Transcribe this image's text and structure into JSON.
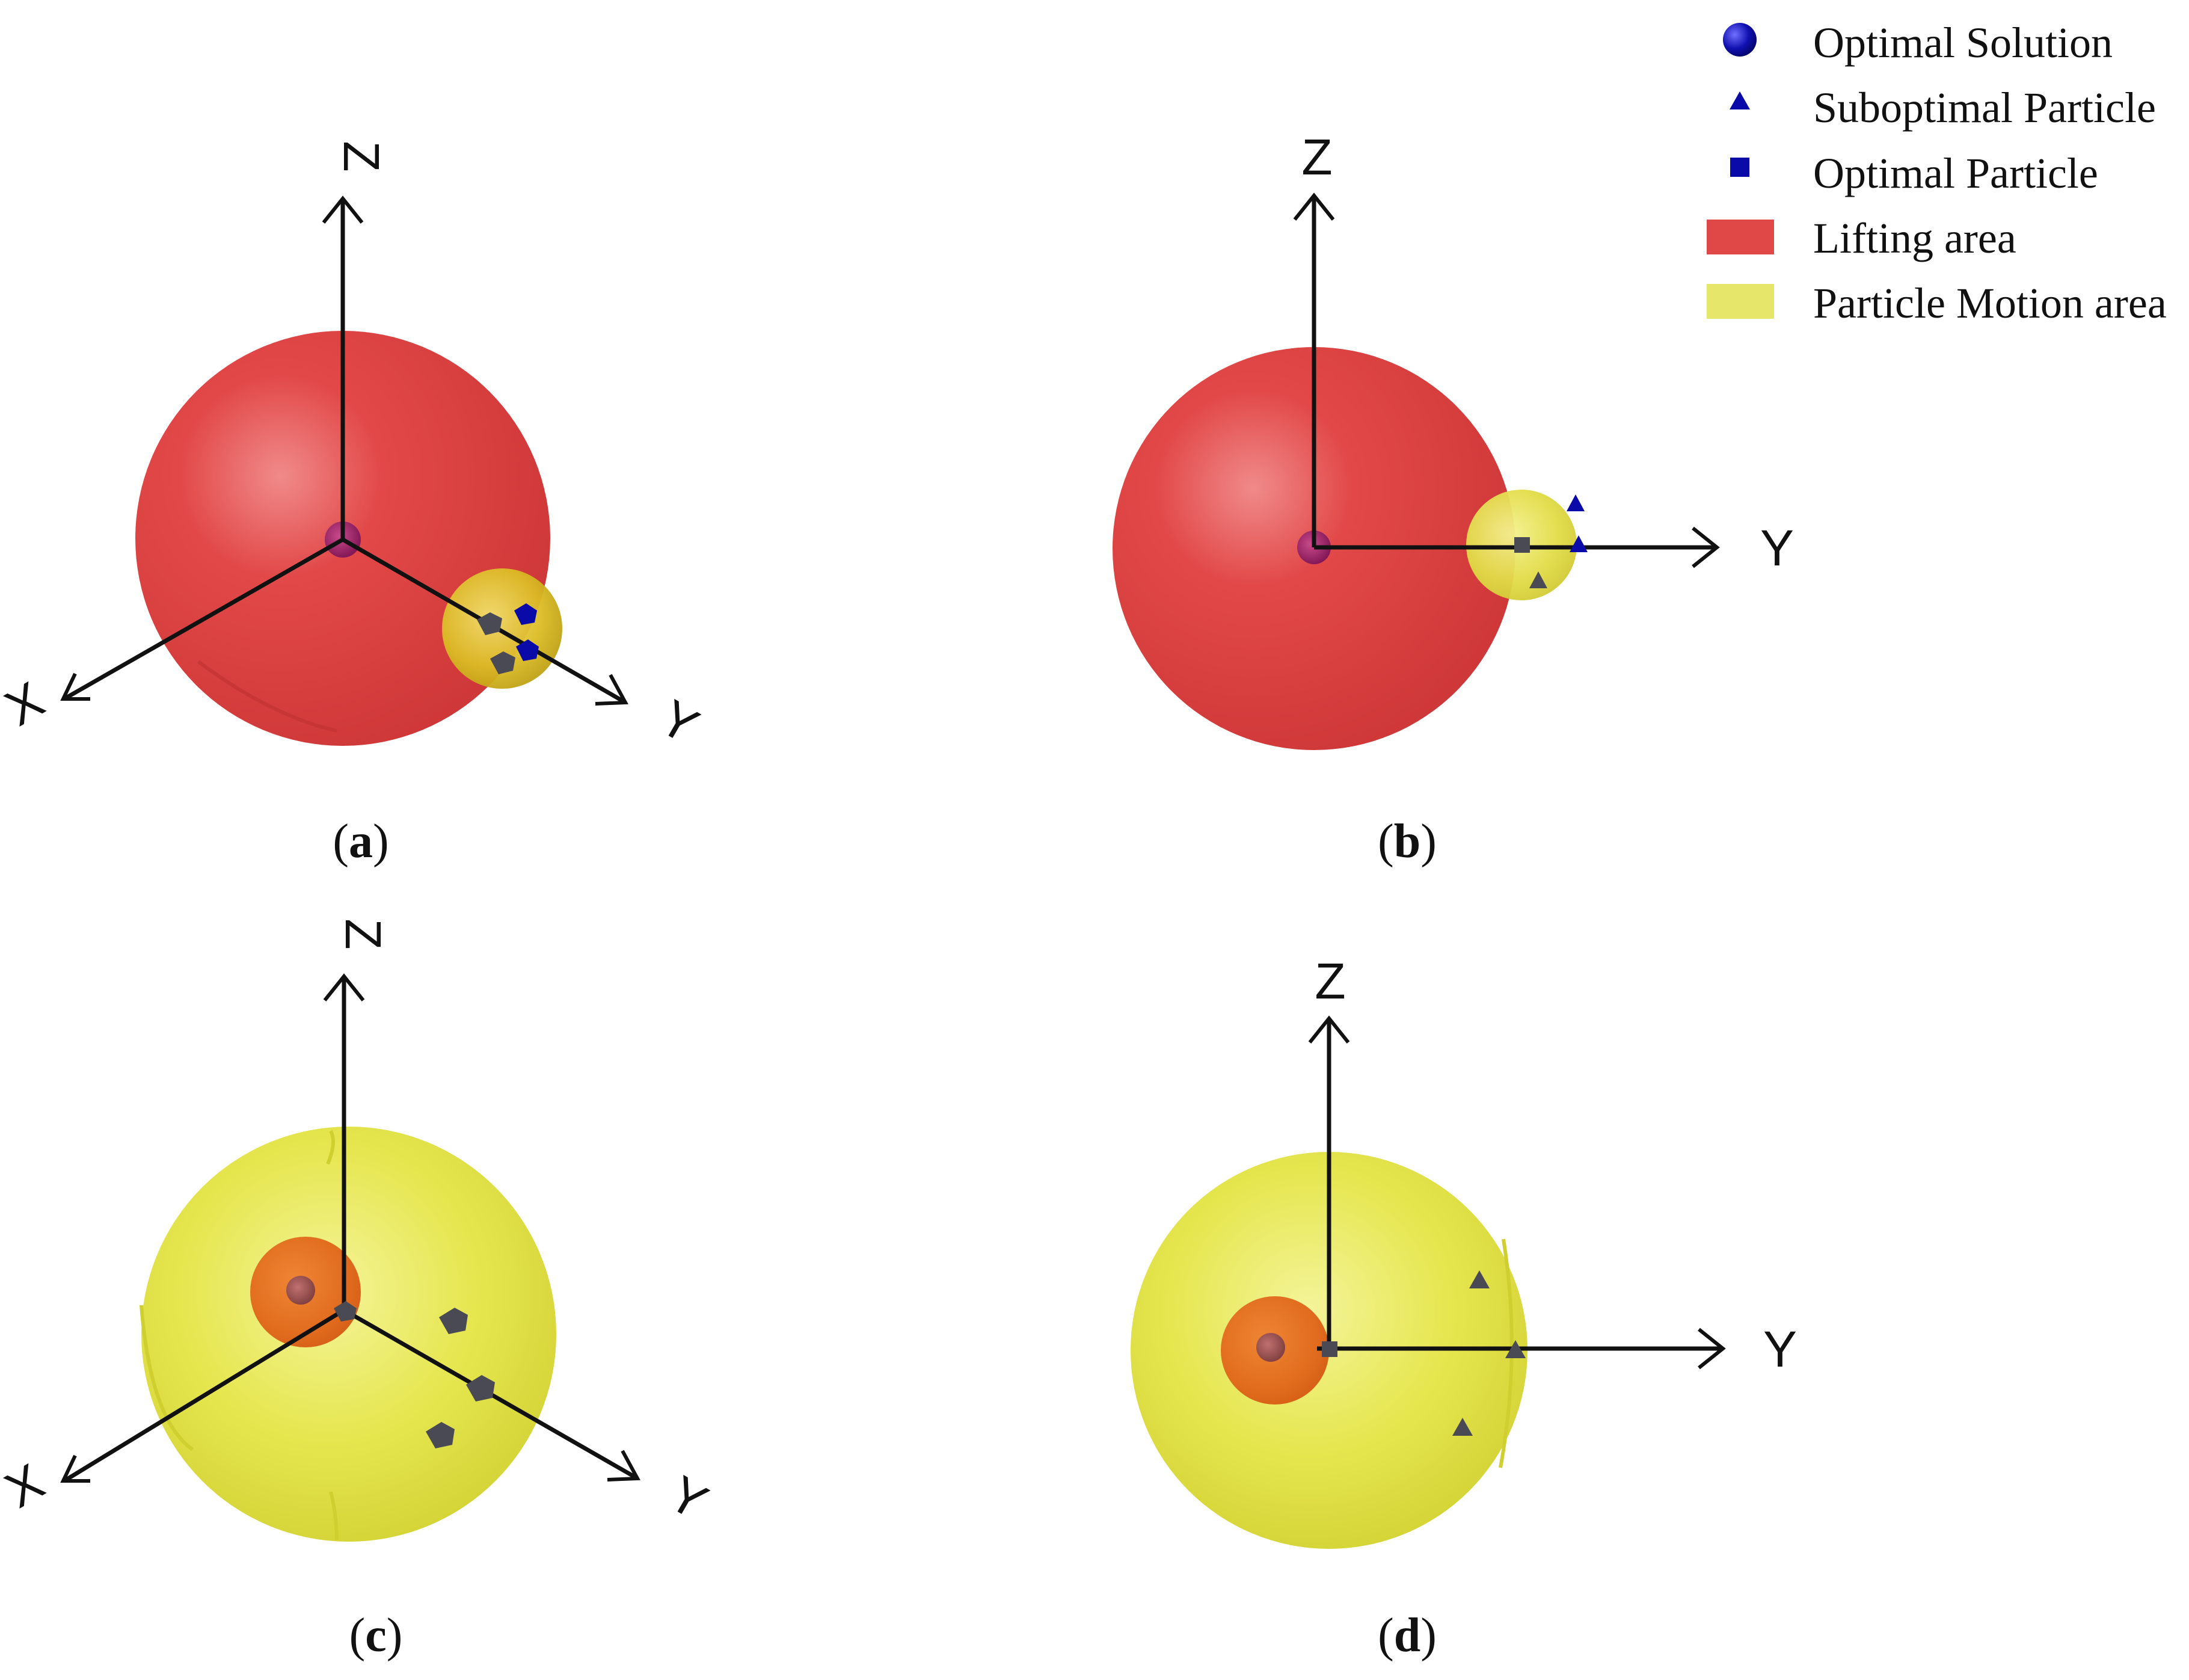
{
  "legend": {
    "items": [
      {
        "symbol": "circle",
        "label": "Optimal Solution",
        "color": "#0a0aa8"
      },
      {
        "symbol": "triangle",
        "label": "Suboptimal Particle",
        "color": "#0a0aa8"
      },
      {
        "symbol": "square",
        "label": "Optimal Particle",
        "color": "#0a0aa8"
      },
      {
        "symbol": "swatch",
        "label": "Lifting area",
        "color": "#e04848"
      },
      {
        "symbol": "swatch",
        "label": "Particle Motion area",
        "color": "#e6e66a"
      }
    ]
  },
  "axes": {
    "x": "X",
    "y": "Y",
    "z": "Z"
  },
  "panels": [
    {
      "id": "a",
      "caption_letter": "a",
      "view": "isometric",
      "big_sphere_color": "#e24545",
      "small_sphere_color": "#e0c020"
    },
    {
      "id": "b",
      "caption_letter": "b",
      "view": "side",
      "big_sphere_color": "#e24545",
      "small_sphere_color": "#e4e050"
    },
    {
      "id": "c",
      "caption_letter": "c",
      "view": "isometric",
      "big_sphere_color": "#e8e84a",
      "small_sphere_color": "#e06020"
    },
    {
      "id": "d",
      "caption_letter": "d",
      "view": "side",
      "big_sphere_color": "#e8e84a",
      "small_sphere_color": "#e06020"
    }
  ],
  "colors": {
    "marker_blue": "#0a0aa8",
    "marker_grey": "#4a4a55",
    "axis": "#111111"
  }
}
